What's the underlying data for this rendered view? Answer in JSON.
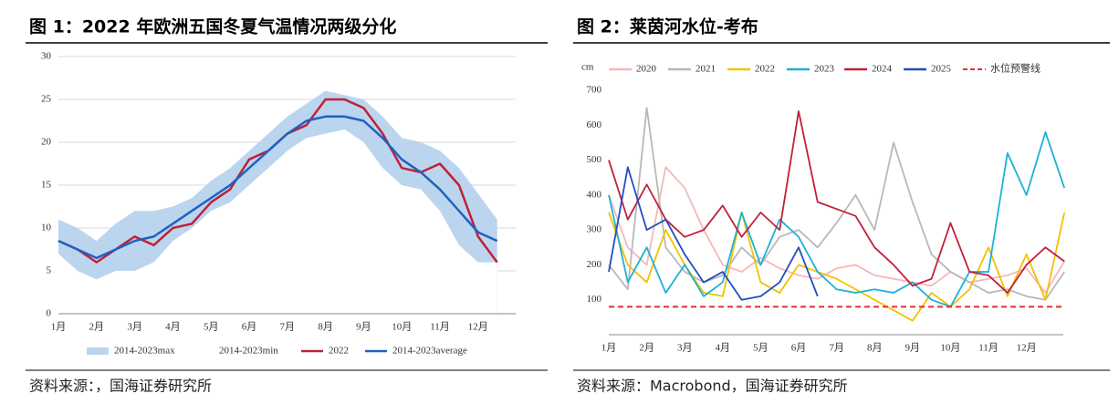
{
  "chart_data": [
    {
      "type": "line",
      "title": "图 1：2022 年欧洲五国冬夏气温情况两级分化",
      "source": "资料来源：，国海证券研究所",
      "categories": [
        "1月",
        null,
        "2月",
        null,
        "3月",
        null,
        "4月",
        null,
        "5月",
        null,
        "6月",
        null,
        "7月",
        null,
        "8月",
        null,
        "9月",
        null,
        "10月",
        null,
        "11月",
        null,
        "12月",
        null
      ],
      "ylim": [
        0,
        30
      ],
      "yticks": [
        0,
        5,
        10,
        15,
        20,
        25,
        30
      ],
      "grid": true,
      "series": [
        {
          "name": "2014-2023max",
          "color": "#bcd5ee",
          "kind": "area",
          "values": [
            11,
            10,
            8.5,
            10.5,
            12,
            12,
            12.5,
            13.5,
            15.5,
            17,
            19,
            21,
            23,
            24.5,
            26,
            25.5,
            25,
            23,
            20.5,
            20,
            19,
            17,
            14,
            11
          ]
        },
        {
          "name": "2014-2023min",
          "color": "#ffffff",
          "kind": "area",
          "values": [
            7,
            5,
            4,
            5,
            5,
            6,
            8.5,
            10,
            12,
            13,
            15,
            17,
            19,
            20.5,
            21,
            21.5,
            20,
            17,
            15,
            14.5,
            12,
            8,
            6,
            6
          ]
        },
        {
          "name": "2022",
          "color": "#c0203a",
          "kind": "line",
          "values": [
            8.5,
            7.5,
            6,
            7.5,
            9,
            8,
            10,
            10.5,
            13,
            14.5,
            18,
            19,
            21,
            22,
            25,
            25,
            24,
            21,
            17,
            16.5,
            17.5,
            15,
            9,
            6
          ]
        },
        {
          "name": "2014-2023average",
          "color": "#1f62c0",
          "kind": "line",
          "values": [
            8.5,
            7.5,
            6.5,
            7.5,
            8.5,
            9,
            10.5,
            12,
            13.5,
            15,
            17,
            19,
            21,
            22.5,
            23,
            23,
            22.5,
            20.5,
            18,
            16.5,
            14.5,
            12,
            9.5,
            8.5
          ]
        }
      ]
    },
    {
      "type": "line",
      "title": "图 2：莱茵河水位-考布",
      "source": "资料来源：Macrobond，国海证券研究所",
      "y_label": "cm",
      "categories": [
        "1月",
        null,
        "2月",
        null,
        "3月",
        null,
        "4月",
        null,
        "5月",
        null,
        "6月",
        null,
        "7月",
        null,
        "8月",
        null,
        "9月",
        null,
        "10月",
        null,
        "11月",
        null,
        "12月",
        null,
        null
      ],
      "ylim": [
        0,
        700
      ],
      "yticks": [
        100,
        200,
        300,
        400,
        500,
        600,
        700
      ],
      "grid": false,
      "series": [
        {
          "name": "2020",
          "color": "#f4b8b8",
          "kind": "line",
          "values": [
            400,
            250,
            200,
            480,
            420,
            300,
            200,
            180,
            220,
            190,
            170,
            160,
            190,
            200,
            170,
            160,
            150,
            140,
            180,
            150,
            160,
            170,
            190,
            120,
            210
          ]
        },
        {
          "name": "2021",
          "color": "#b8b8b8",
          "kind": "line",
          "values": [
            200,
            130,
            650,
            250,
            180,
            150,
            170,
            250,
            200,
            280,
            300,
            250,
            320,
            400,
            300,
            550,
            380,
            230,
            180,
            150,
            120,
            130,
            110,
            100,
            180
          ]
        },
        {
          "name": "2022",
          "color": "#f5c000",
          "kind": "line",
          "values": [
            350,
            200,
            150,
            300,
            200,
            120,
            110,
            350,
            150,
            120,
            200,
            180,
            160,
            130,
            100,
            70,
            40,
            120,
            80,
            130,
            250,
            110,
            230,
            100,
            350
          ]
        },
        {
          "name": "2023",
          "color": "#1fb0d8",
          "kind": "line",
          "values": [
            400,
            150,
            250,
            120,
            200,
            110,
            150,
            350,
            200,
            330,
            280,
            180,
            130,
            120,
            130,
            120,
            150,
            100,
            80,
            180,
            180,
            520,
            400,
            580,
            420
          ]
        },
        {
          "name": "2024",
          "color": "#c0203a",
          "kind": "line",
          "values": [
            500,
            330,
            430,
            330,
            280,
            300,
            370,
            280,
            350,
            300,
            640,
            380,
            360,
            340,
            250,
            200,
            140,
            160,
            320,
            180,
            170,
            120,
            200,
            250,
            210
          ]
        },
        {
          "name": "2025",
          "color": "#1f4fbf",
          "kind": "line",
          "values": [
            180,
            480,
            300,
            330,
            230,
            150,
            180,
            100,
            110,
            150,
            250,
            110,
            null,
            null,
            null,
            null,
            null,
            null,
            null,
            null,
            null,
            null,
            null,
            null,
            null
          ]
        }
      ],
      "reference_lines": [
        {
          "name": "水位预警线",
          "value": 80,
          "color": "#e03030"
        }
      ]
    }
  ]
}
